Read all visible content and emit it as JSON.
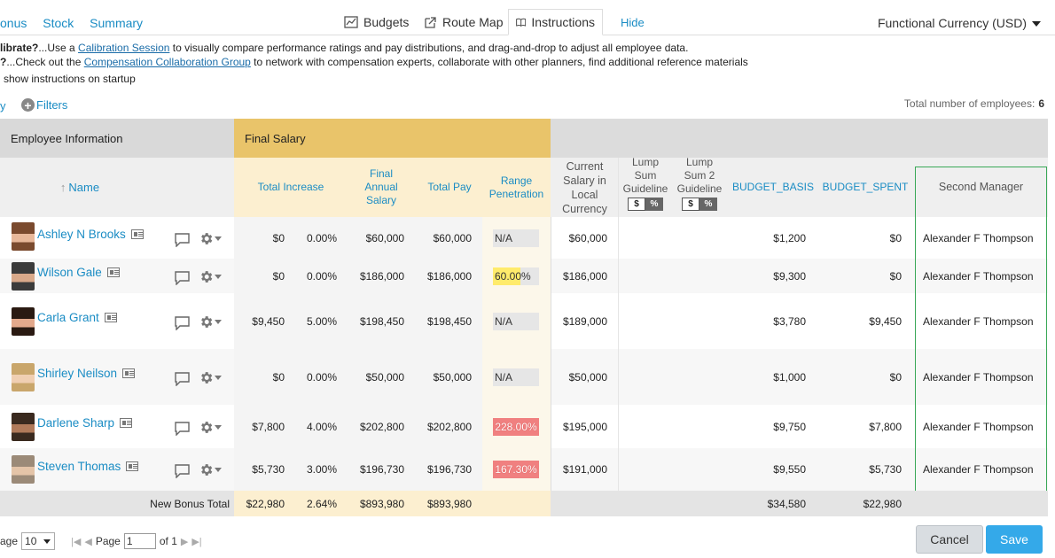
{
  "nav": {
    "left_links": [
      "onus",
      "Stock",
      "Summary"
    ],
    "budgets": "Budgets",
    "route_map": "Route Map",
    "instructions": "Instructions",
    "hide": "Hide",
    "currency": "Functional Currency (USD)"
  },
  "info": {
    "line1_prefix": "librate?",
    "line1_a": "...Use a ",
    "line1_link": "Calibration Session",
    "line1_b": " to visually compare performance ratings and pay distributions, and drag-and-drop to adjust all employee data.",
    "line2_prefix": "?",
    "line2_a": "...Check out the ",
    "line2_link": "Compensation Collaboration Group",
    "line2_b": " to network with compensation experts, collaborate with other planners, find additional reference materials",
    "line3": "show instructions on startup"
  },
  "toolbar": {
    "left_fragment": "y",
    "filters": "Filters",
    "total_label": "Total number of employees:",
    "total_value": "6"
  },
  "groups": {
    "employee_info": "Employee Information",
    "final_salary": "Final Salary"
  },
  "columns": {
    "name": "Name",
    "total_increase": "Total Increase",
    "final_annual_salary": "Final Annual Salary",
    "total_pay": "Total Pay",
    "range_penetration": "Range Penetration",
    "current_salary": "Current Salary in Local Currency",
    "lump_sum": "Lump Sum Guideline",
    "lump_sum2": "Lump Sum 2 Guideline",
    "budget_basis": "BUDGET_BASIS",
    "budget_spent": "BUDGET_SPENT",
    "second_manager": "Second Manager",
    "dollar": "$",
    "percent": "%"
  },
  "rows": [
    {
      "name": "Ashley N Brooks",
      "inc_amt": "$0",
      "inc_pct": "0.00%",
      "final": "$60,000",
      "total_pay": "$60,000",
      "range": "N/A",
      "range_fill": 0,
      "current": "$60,000",
      "basis": "$1,200",
      "spent": "$0",
      "manager": "Alexander F Thompson"
    },
    {
      "name": "Wilson Gale",
      "inc_amt": "$0",
      "inc_pct": "0.00%",
      "final": "$186,000",
      "total_pay": "$186,000",
      "range": "60.00%",
      "range_fill": 0.6,
      "current": "$186,000",
      "basis": "$9,300",
      "spent": "$0",
      "manager": "Alexander F Thompson"
    },
    {
      "name": "Carla Grant",
      "inc_amt": "$9,450",
      "inc_pct": "5.00%",
      "final": "$198,450",
      "total_pay": "$198,450",
      "range": "N/A",
      "range_fill": 0,
      "current": "$189,000",
      "basis": "$3,780",
      "spent": "$9,450",
      "manager": "Alexander F Thompson"
    },
    {
      "name": "Shirley Neilson",
      "inc_amt": "$0",
      "inc_pct": "0.00%",
      "final": "$50,000",
      "total_pay": "$50,000",
      "range": "N/A",
      "range_fill": 0,
      "current": "$50,000",
      "basis": "$1,000",
      "spent": "$0",
      "manager": "Alexander F Thompson"
    },
    {
      "name": "Darlene Sharp",
      "inc_amt": "$7,800",
      "inc_pct": "4.00%",
      "final": "$202,800",
      "total_pay": "$202,800",
      "range": "228.00%",
      "range_fill": 1,
      "current": "$195,000",
      "basis": "$9,750",
      "spent": "$7,800",
      "manager": "Alexander F Thompson"
    },
    {
      "name": "Steven Thomas",
      "inc_amt": "$5,730",
      "inc_pct": "3.00%",
      "final": "$196,730",
      "total_pay": "$196,730",
      "range": "167.30%",
      "range_fill": 1,
      "current": "$191,000",
      "basis": "$9,550",
      "spent": "$5,730",
      "manager": "Alexander F Thompson"
    }
  ],
  "totals": {
    "label": "New Bonus Total",
    "inc_amt": "$22,980",
    "inc_pct": "2.64%",
    "final": "$893,980",
    "total_pay": "$893,980",
    "basis": "$34,580",
    "spent": "$22,980"
  },
  "pager": {
    "per_page_label": "age",
    "per_page": "10",
    "page_label": "Page",
    "page_value": "1",
    "of_label": "of 1"
  },
  "buttons": {
    "cancel": "Cancel",
    "save": "Save"
  },
  "colors": {
    "final_salary_header": "#e9c46a",
    "final_salary_col": "#fcefd0",
    "range_yellow": "#ffeb6b",
    "range_red": "#f08080",
    "save_blue": "#34a9e9",
    "manager_border": "#3aa857"
  }
}
